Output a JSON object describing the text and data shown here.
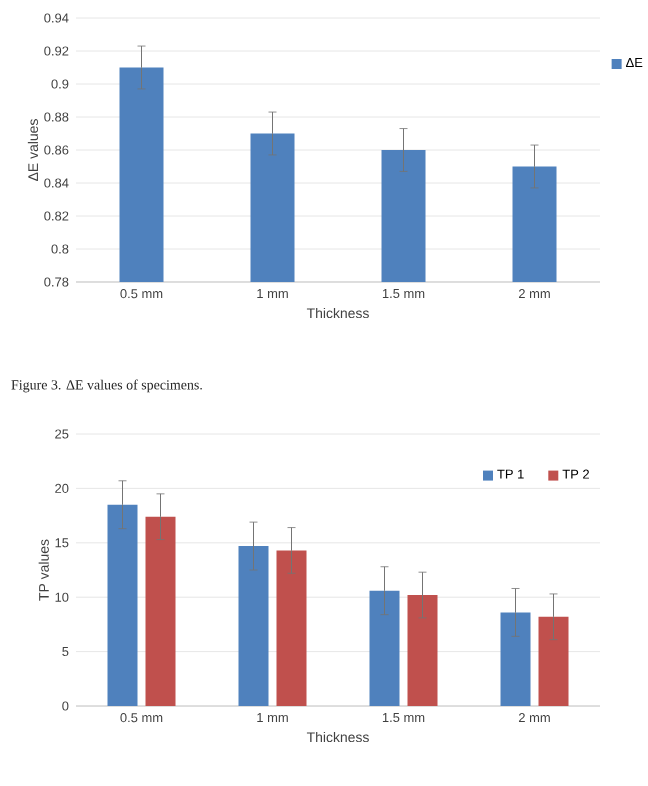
{
  "chart_data": [
    {
      "type": "bar",
      "xlabel": "Thickness",
      "ylabel": "ΔE values",
      "categories": [
        "0.5 mm",
        "1 mm",
        "1.5 mm",
        "2 mm"
      ],
      "series": [
        {
          "name": "ΔE",
          "color": "#4f81bd",
          "values": [
            0.91,
            0.87,
            0.86,
            0.85
          ],
          "errors": [
            0.013,
            0.013,
            0.013,
            0.013
          ]
        }
      ],
      "ylim": [
        0.78,
        0.94
      ],
      "yticks": [
        0.78,
        0.8,
        0.82,
        0.84,
        0.86,
        0.88,
        0.9,
        0.92,
        0.94
      ],
      "grid": "y",
      "legend": "right",
      "annotations": [
        "Figure 3. ΔE values of specimens."
      ]
    },
    {
      "type": "bar",
      "xlabel": "Thickness",
      "ylabel": "TP values",
      "categories": [
        "0.5 mm",
        "1 mm",
        "1.5 mm",
        "2 mm"
      ],
      "series": [
        {
          "name": "TP 1",
          "color": "#4f81bd",
          "values": [
            18.5,
            14.7,
            10.6,
            8.6
          ],
          "errors": [
            2.2,
            2.2,
            2.2,
            2.2
          ]
        },
        {
          "name": "TP 2",
          "color": "#c0504d",
          "values": [
            17.4,
            14.3,
            10.2,
            8.2
          ],
          "errors": [
            2.1,
            2.1,
            2.1,
            2.1
          ]
        }
      ],
      "ylim": [
        0,
        25
      ],
      "yticks": [
        0,
        5,
        10,
        15,
        20,
        25
      ],
      "grid": "y",
      "legend": "top right"
    }
  ]
}
